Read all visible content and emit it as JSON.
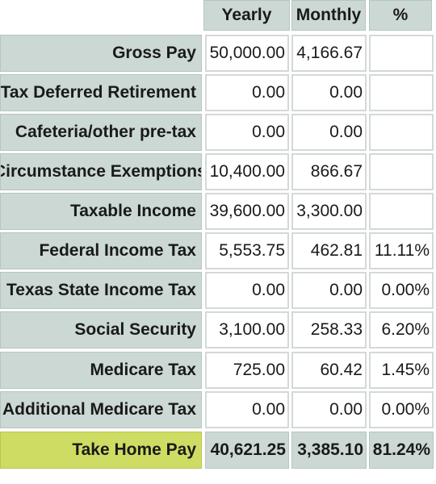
{
  "columns": [
    "Yearly",
    "Monthly",
    "%"
  ],
  "rows": [
    {
      "label": "Gross Pay",
      "yearly": "50,000.00",
      "monthly": "4,166.67",
      "percent": ""
    },
    {
      "label": "Tax Deferred Retirement",
      "yearly": "0.00",
      "monthly": "0.00",
      "percent": ""
    },
    {
      "label": "Cafeteria/other pre-tax",
      "yearly": "0.00",
      "monthly": "0.00",
      "percent": ""
    },
    {
      "label": "Circumstance Exemptions",
      "yearly": "10,400.00",
      "monthly": "866.67",
      "percent": ""
    },
    {
      "label": "Taxable Income",
      "yearly": "39,600.00",
      "monthly": "3,300.00",
      "percent": ""
    },
    {
      "label": "Federal Income Tax",
      "yearly": "5,553.75",
      "monthly": "462.81",
      "percent": "11.11%"
    },
    {
      "label": "Texas State Income Tax",
      "yearly": "0.00",
      "monthly": "0.00",
      "percent": "0.00%"
    },
    {
      "label": "Social Security",
      "yearly": "3,100.00",
      "monthly": "258.33",
      "percent": "6.20%"
    },
    {
      "label": "Medicare Tax",
      "yearly": "725.00",
      "monthly": "60.42",
      "percent": "1.45%"
    },
    {
      "label": "Additional Medicare Tax",
      "yearly": "0.00",
      "monthly": "0.00",
      "percent": "0.00%"
    }
  ],
  "total": {
    "label": "Take Home Pay",
    "yearly": "40,621.25",
    "monthly": "3,385.10",
    "percent": "81.24%"
  },
  "colors": {
    "header_bg": "#ccd8d4",
    "total_label_bg": "#cfdc63",
    "cell_bg": "#ffffff"
  }
}
